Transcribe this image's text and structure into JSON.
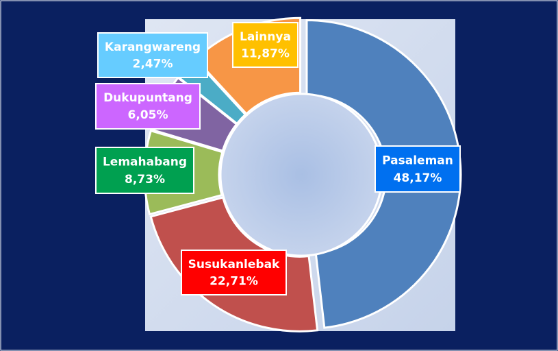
{
  "chart_data": {
    "type": "donut",
    "categories": [
      "Pasaleman",
      "Susukanlebak",
      "Lemahabang",
      "Dukupuntang",
      "Karangwareng",
      "Lainnya"
    ],
    "values": [
      48.17,
      22.71,
      8.73,
      6.05,
      2.47,
      11.87
    ],
    "value_labels": [
      "48,17%",
      "22,71%",
      "8,73%",
      "6,05%",
      "2,47%",
      "11,87%"
    ],
    "colors": [
      "#4f81bd",
      "#c0504d",
      "#9bbb59",
      "#8064a2",
      "#4bacc6",
      "#f79646"
    ],
    "label_colors": [
      "#0070f0",
      "#ff0000",
      "#00a050",
      "#cc66ff",
      "#66ccff",
      "#ffc000"
    ]
  }
}
